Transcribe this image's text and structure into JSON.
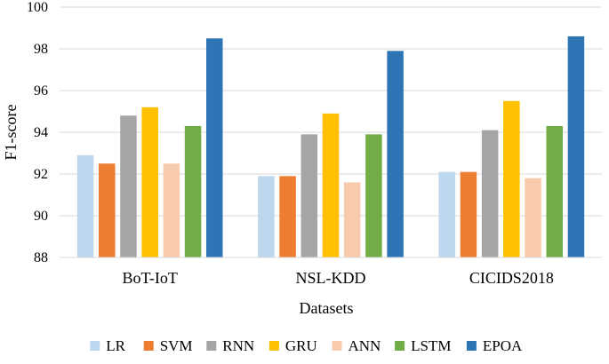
{
  "chart_data": {
    "type": "bar",
    "title": "",
    "xlabel": "Datasets",
    "ylabel": "F1-score",
    "ylim": [
      88,
      100
    ],
    "yticks": [
      88,
      90,
      92,
      94,
      96,
      98,
      100
    ],
    "grid": true,
    "legend_position": "bottom",
    "categories": [
      "BoT-IoT",
      "NSL-KDD",
      "CICIDS2018"
    ],
    "series": [
      {
        "name": "LR",
        "color": "#BDD7EE",
        "values": [
          92.9,
          91.9,
          92.1
        ]
      },
      {
        "name": "SVM",
        "color": "#ED7D31",
        "values": [
          92.5,
          91.9,
          92.1
        ]
      },
      {
        "name": "RNN",
        "color": "#A5A5A5",
        "values": [
          94.8,
          93.9,
          94.1
        ]
      },
      {
        "name": "GRU",
        "color": "#FFC000",
        "values": [
          95.2,
          94.9,
          95.5
        ]
      },
      {
        "name": "ANN",
        "color": "#F8CBAD",
        "values": [
          92.5,
          91.6,
          91.8
        ]
      },
      {
        "name": "LSTM",
        "color": "#70AD47",
        "values": [
          94.3,
          93.9,
          94.3
        ]
      },
      {
        "name": "EPOA",
        "color": "#2E75B6",
        "values": [
          98.5,
          97.9,
          98.6
        ]
      }
    ]
  }
}
